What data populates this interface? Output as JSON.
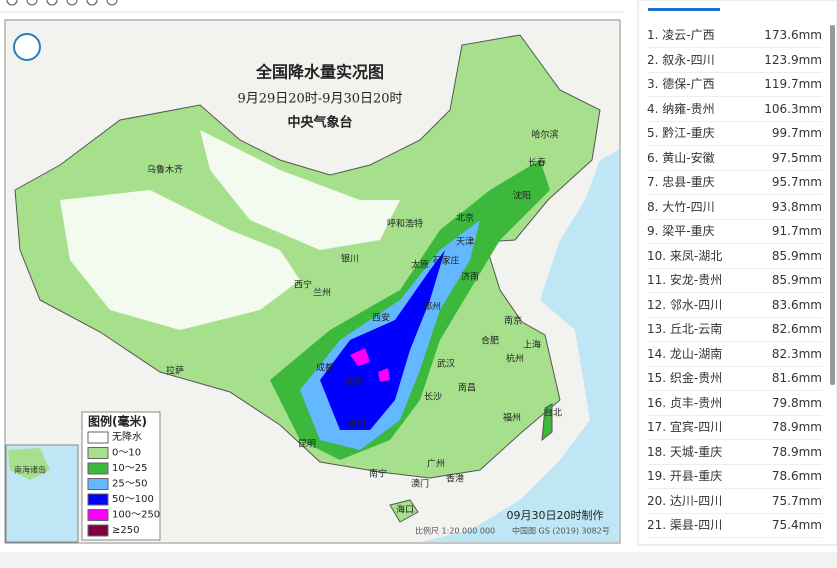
{
  "map": {
    "title": "全国降水量实况图",
    "subtitle": "9月29日20时-9月30日20时",
    "agency": "中央气象台",
    "legend": {
      "title": "图例(毫米)",
      "items": [
        {
          "label": "无降水",
          "color": "#ffffff"
        },
        {
          "label": "0～10",
          "color": "#a6e08c"
        },
        {
          "label": "10～25",
          "color": "#3cb83c"
        },
        {
          "label": "25～50",
          "color": "#63b8ff"
        },
        {
          "label": "50～100",
          "color": "#0000fe"
        },
        {
          "label": "100～250",
          "color": "#fa00fa"
        },
        {
          "label": "≥250",
          "color": "#800040"
        }
      ]
    },
    "cities": [
      "乌鲁木齐",
      "哈尔滨",
      "长春",
      "沈阳",
      "呼和浩特",
      "北京",
      "天津",
      "石家庄",
      "太原",
      "济南",
      "银川",
      "西宁",
      "兰州",
      "郑州",
      "西安",
      "合肥",
      "南京",
      "上海",
      "杭州",
      "武汉",
      "成都",
      "重庆",
      "长沙",
      "南昌",
      "贵阳",
      "昆明",
      "福州",
      "台北",
      "南宁",
      "广州",
      "澳门",
      "香港",
      "海口",
      "拉萨"
    ],
    "inset": "南海诸岛",
    "scale": "比例尺 1:20 000 000",
    "map_no": "中国图 GS (2019) 3082号",
    "made": "09月30日20时制作"
  },
  "ranking": [
    [
      "1. 凌云-广西",
      "173.6mm"
    ],
    [
      "2. 叙永-四川",
      "123.9mm"
    ],
    [
      "3. 德保-广西",
      "119.7mm"
    ],
    [
      "4. 纳雍-贵州",
      "106.3mm"
    ],
    [
      "5. 黔江-重庆",
      "99.7mm"
    ],
    [
      "6. 黄山-安徽",
      "97.5mm"
    ],
    [
      "7. 忠县-重庆",
      "95.7mm"
    ],
    [
      "8. 大竹-四川",
      "93.8mm"
    ],
    [
      "9. 梁平-重庆",
      "91.7mm"
    ],
    [
      "10. 来凤-湖北",
      "85.9mm"
    ],
    [
      "11. 安龙-贵州",
      "85.9mm"
    ],
    [
      "12. 邻水-四川",
      "83.6mm"
    ],
    [
      "13. 丘北-云南",
      "82.6mm"
    ],
    [
      "14. 龙山-湖南",
      "82.3mm"
    ],
    [
      "15. 织金-贵州",
      "81.6mm"
    ],
    [
      "16. 贞丰-贵州",
      "79.8mm"
    ],
    [
      "17. 宜宾-四川",
      "78.9mm"
    ],
    [
      "18. 天城-重庆",
      "78.9mm"
    ],
    [
      "19. 开县-重庆",
      "78.6mm"
    ],
    [
      "20. 达川-四川",
      "75.7mm"
    ],
    [
      "21. 渠县-四川",
      "75.4mm"
    ]
  ]
}
